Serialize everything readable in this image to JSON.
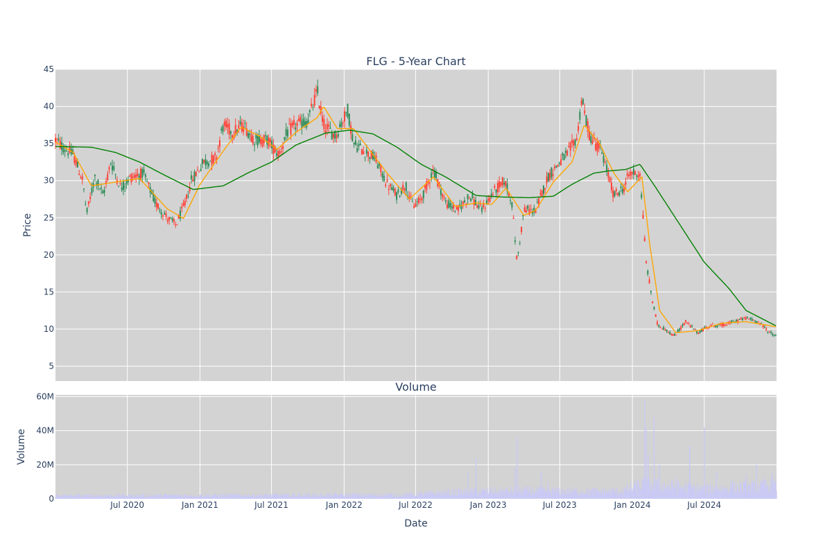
{
  "chart_data": [
    {
      "type": "candlestick",
      "title": "FLG - 5-Year Chart",
      "xlabel": "",
      "ylabel": "Price",
      "ylim": [
        3,
        45
      ],
      "yticks": [
        5,
        10,
        15,
        20,
        25,
        30,
        35,
        40,
        45
      ],
      "grid": true,
      "legend": "none",
      "colors": {
        "up": "#2e8b57",
        "down": "#ff4136",
        "ma_short": "#ffa500",
        "ma_long": "#008000",
        "plot_bg": "#d3d3d3",
        "grid": "#ffffff"
      },
      "x_range": [
        "2020-01-01",
        "2024-12-31"
      ],
      "price_path": [
        [
          "2020-01-01",
          35.5
        ],
        [
          "2020-01-20",
          34.5
        ],
        [
          "2020-02-15",
          33.5
        ],
        [
          "2020-03-10",
          30.0
        ],
        [
          "2020-03-20",
          25.5
        ],
        [
          "2020-04-10",
          30.5
        ],
        [
          "2020-05-01",
          28.0
        ],
        [
          "2020-05-20",
          32.5
        ],
        [
          "2020-06-15",
          29.0
        ],
        [
          "2020-07-10",
          30.5
        ],
        [
          "2020-08-10",
          31.0
        ],
        [
          "2020-09-10",
          27.0
        ],
        [
          "2020-10-10",
          25.0
        ],
        [
          "2020-11-01",
          24.0
        ],
        [
          "2020-11-25",
          27.0
        ],
        [
          "2020-12-10",
          30.0
        ],
        [
          "2021-01-10",
          32.5
        ],
        [
          "2021-02-10",
          33.0
        ],
        [
          "2021-03-01",
          37.5
        ],
        [
          "2021-03-25",
          36.5
        ],
        [
          "2021-04-20",
          37.5
        ],
        [
          "2021-05-20",
          35.5
        ],
        [
          "2021-06-20",
          35.5
        ],
        [
          "2021-07-20",
          33.5
        ],
        [
          "2021-08-10",
          36.5
        ],
        [
          "2021-09-01",
          37.5
        ],
        [
          "2021-10-01",
          38.0
        ],
        [
          "2021-10-25",
          42.0
        ],
        [
          "2021-11-10",
          37.5
        ],
        [
          "2021-12-10",
          36.0
        ],
        [
          "2022-01-01",
          38.5
        ],
        [
          "2022-01-10",
          39.5
        ],
        [
          "2022-01-25",
          35.0
        ],
        [
          "2022-02-20",
          34.0
        ],
        [
          "2022-03-20",
          33.0
        ],
        [
          "2022-04-20",
          29.5
        ],
        [
          "2022-05-15",
          28.0
        ],
        [
          "2022-06-05",
          29.5
        ],
        [
          "2022-06-25",
          26.5
        ],
        [
          "2022-07-15",
          27.5
        ],
        [
          "2022-08-15",
          31.5
        ],
        [
          "2022-09-15",
          27.0
        ],
        [
          "2022-10-15",
          26.0
        ],
        [
          "2022-11-15",
          28.0
        ],
        [
          "2022-12-15",
          26.0
        ],
        [
          "2023-01-15",
          28.5
        ],
        [
          "2023-02-10",
          30.0
        ],
        [
          "2023-03-01",
          27.5
        ],
        [
          "2023-03-15",
          19.0
        ],
        [
          "2023-04-01",
          26.0
        ],
        [
          "2023-05-01",
          26.0
        ],
        [
          "2023-06-01",
          30.5
        ],
        [
          "2023-07-01",
          32.5
        ],
        [
          "2023-07-20",
          33.5
        ],
        [
          "2023-08-15",
          36.0
        ],
        [
          "2023-08-25",
          41.0
        ],
        [
          "2023-09-15",
          36.0
        ],
        [
          "2023-10-15",
          34.0
        ],
        [
          "2023-11-15",
          28.0
        ],
        [
          "2023-12-10",
          29.0
        ],
        [
          "2023-12-25",
          31.0
        ],
        [
          "2024-01-20",
          31.0
        ],
        [
          "2024-02-05",
          19.0
        ],
        [
          "2024-02-20",
          14.0
        ],
        [
          "2024-03-05",
          10.5
        ],
        [
          "2024-03-25",
          10.0
        ],
        [
          "2024-04-15",
          9.0
        ],
        [
          "2024-05-15",
          11.0
        ],
        [
          "2024-06-15",
          9.5
        ],
        [
          "2024-07-15",
          10.5
        ],
        [
          "2024-08-15",
          10.5
        ],
        [
          "2024-09-15",
          11.0
        ],
        [
          "2024-10-15",
          11.5
        ],
        [
          "2024-11-15",
          11.0
        ],
        [
          "2024-12-15",
          9.5
        ],
        [
          "2024-12-31",
          9.0
        ]
      ],
      "series": [
        {
          "values": [
            [
              "2020-01-01",
              35.2
            ],
            [
              "2020-02-15",
              33.8
            ],
            [
              "2020-04-01",
              29.3
            ],
            [
              "2020-06-01",
              29.8
            ],
            [
              "2020-08-01",
              30.3
            ],
            [
              "2020-10-10",
              26.2
            ],
            [
              "2020-11-20",
              24.9
            ],
            [
              "2021-01-01",
              29.5
            ],
            [
              "2021-03-01",
              34.0
            ],
            [
              "2021-04-15",
              37.2
            ],
            [
              "2021-06-01",
              36.0
            ],
            [
              "2021-07-15",
              34.2
            ],
            [
              "2021-09-01",
              36.5
            ],
            [
              "2021-10-25",
              38.5
            ],
            [
              "2021-11-10",
              40.0
            ],
            [
              "2021-12-15",
              37.0
            ],
            [
              "2022-01-25",
              37.0
            ],
            [
              "2022-03-01",
              34.5
            ],
            [
              "2022-04-20",
              31.0
            ],
            [
              "2022-06-15",
              27.5
            ],
            [
              "2022-08-15",
              30.5
            ],
            [
              "2022-10-10",
              26.5
            ],
            [
              "2022-12-01",
              27.0
            ],
            [
              "2023-01-10",
              26.8
            ],
            [
              "2023-02-15",
              29.0
            ],
            [
              "2023-04-01",
              25.3
            ],
            [
              "2023-05-01",
              26.0
            ],
            [
              "2023-06-15",
              29.8
            ],
            [
              "2023-08-01",
              32.5
            ],
            [
              "2023-09-01",
              37.5
            ],
            [
              "2023-10-10",
              35.0
            ],
            [
              "2023-11-15",
              31.0
            ],
            [
              "2023-12-20",
              28.5
            ],
            [
              "2024-01-25",
              30.5
            ],
            [
              "2024-02-15",
              21.0
            ],
            [
              "2024-03-10",
              12.5
            ],
            [
              "2024-04-20",
              9.5
            ],
            [
              "2024-06-15",
              9.8
            ],
            [
              "2024-08-15",
              10.8
            ],
            [
              "2024-10-15",
              11.0
            ],
            [
              "2024-12-31",
              10.3
            ]
          ]
        },
        {
          "values": [
            [
              "2020-01-01",
              34.6
            ],
            [
              "2020-04-01",
              34.5
            ],
            [
              "2020-06-01",
              33.8
            ],
            [
              "2020-08-01",
              32.5
            ],
            [
              "2020-10-01",
              30.8
            ],
            [
              "2020-12-15",
              28.8
            ],
            [
              "2021-03-01",
              29.3
            ],
            [
              "2021-05-01",
              31.0
            ],
            [
              "2021-07-01",
              32.5
            ],
            [
              "2021-09-01",
              34.8
            ],
            [
              "2021-11-15",
              36.4
            ],
            [
              "2022-01-15",
              36.8
            ],
            [
              "2022-03-15",
              36.3
            ],
            [
              "2022-05-15",
              34.5
            ],
            [
              "2022-07-15",
              32.2
            ],
            [
              "2022-09-15",
              30.5
            ],
            [
              "2022-12-01",
              28.0
            ],
            [
              "2023-02-01",
              27.8
            ],
            [
              "2023-04-15",
              27.7
            ],
            [
              "2023-06-15",
              27.9
            ],
            [
              "2023-08-01",
              29.5
            ],
            [
              "2023-09-25",
              31.0
            ],
            [
              "2023-11-01",
              31.3
            ],
            [
              "2023-12-15",
              31.5
            ],
            [
              "2024-01-20",
              32.2
            ],
            [
              "2024-03-01",
              29.0
            ],
            [
              "2024-05-01",
              24.0
            ],
            [
              "2024-07-01",
              19.0
            ],
            [
              "2024-09-01",
              15.5
            ],
            [
              "2024-10-15",
              12.5
            ],
            [
              "2024-12-31",
              10.4
            ]
          ]
        }
      ]
    },
    {
      "type": "bar",
      "title": "Volume",
      "xlabel": "Date",
      "ylabel": "Volume",
      "ylim": [
        0,
        61000000
      ],
      "yticks": [
        0,
        20000000,
        40000000,
        60000000
      ],
      "ytick_labels": [
        "0",
        "20M",
        "40M",
        "60M"
      ],
      "xticks": [
        "2020-07-01",
        "2021-01-01",
        "2021-07-01",
        "2022-01-01",
        "2022-07-01",
        "2023-01-01",
        "2023-07-01",
        "2024-01-01",
        "2024-07-01"
      ],
      "xtick_labels": [
        "Jul 2020",
        "Jan 2021",
        "Jul 2021",
        "Jan 2022",
        "Jul 2022",
        "Jan 2023",
        "Jul 2023",
        "Jan 2024",
        "Jul 2024"
      ],
      "grid": true,
      "colors": {
        "bar": "#c9c9f5"
      },
      "base_volume": [
        [
          "2020-01-01",
          2000000
        ],
        [
          "2022-06-01",
          2500000
        ],
        [
          "2022-10-01",
          4000000
        ],
        [
          "2023-03-01",
          5000000
        ],
        [
          "2023-12-01",
          4500000
        ],
        [
          "2024-02-01",
          9000000
        ],
        [
          "2024-07-01",
          6000000
        ],
        [
          "2024-12-31",
          8000000
        ]
      ],
      "spikes": [
        [
          "2022-11-10",
          16000000
        ],
        [
          "2022-12-01",
          24000000
        ],
        [
          "2023-03-15",
          36000000
        ],
        [
          "2023-03-10",
          18000000
        ],
        [
          "2023-05-15",
          16000000
        ],
        [
          "2023-06-01",
          10000000
        ],
        [
          "2023-11-15",
          6000000
        ],
        [
          "2024-02-01",
          58000000
        ],
        [
          "2024-02-05",
          42000000
        ],
        [
          "2024-02-10",
          26000000
        ],
        [
          "2024-02-25",
          48000000
        ],
        [
          "2024-03-10",
          20000000
        ],
        [
          "2024-04-20",
          12000000
        ],
        [
          "2024-05-25",
          31000000
        ],
        [
          "2024-07-01",
          42000000
        ],
        [
          "2024-08-01",
          16000000
        ],
        [
          "2024-09-10",
          11000000
        ],
        [
          "2024-10-15",
          14000000
        ],
        [
          "2024-11-10",
          20000000
        ],
        [
          "2024-12-01",
          13000000
        ],
        [
          "2024-12-20",
          15000000
        ]
      ]
    }
  ]
}
